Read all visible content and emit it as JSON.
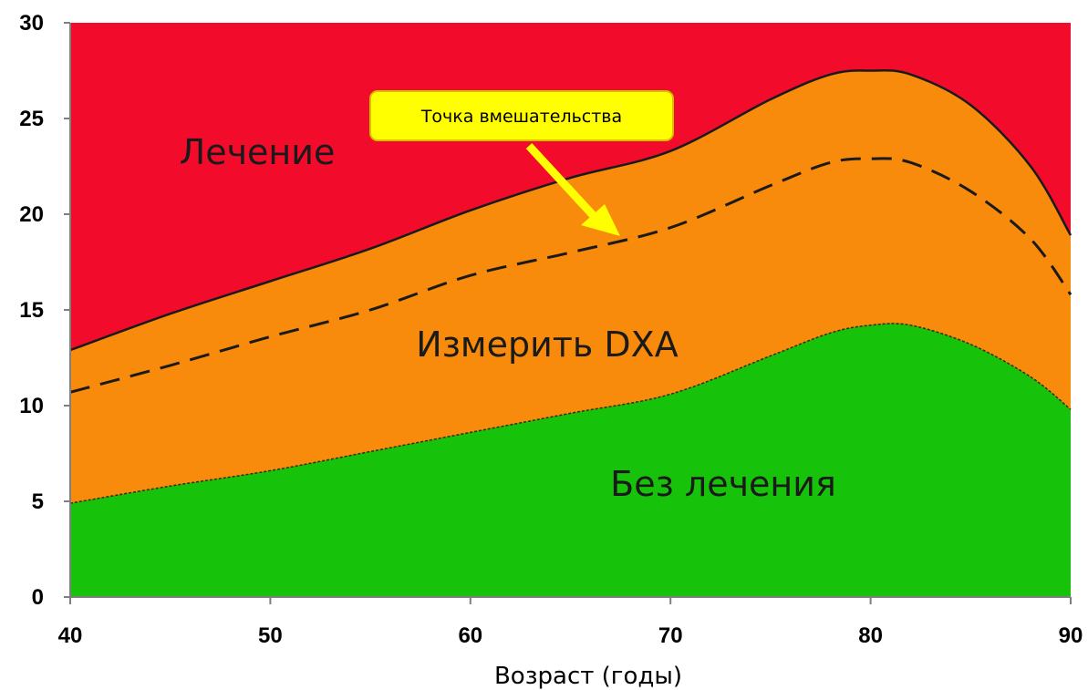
{
  "chart_data": {
    "type": "area",
    "xlabel": "Возраст (годы)",
    "ylabel": "",
    "xlim": [
      40,
      90
    ],
    "ylim": [
      0,
      30
    ],
    "x_ticks": [
      "40",
      "50",
      "60",
      "70",
      "80",
      "90"
    ],
    "y_ticks": [
      "0",
      "5",
      "10",
      "15",
      "20",
      "25",
      "30"
    ],
    "x": [
      40,
      45,
      50,
      55,
      60,
      65,
      70,
      75,
      78,
      80,
      82,
      85,
      88,
      90
    ],
    "series": [
      {
        "name": "Без лечения",
        "color": "#17c20a",
        "values": [
          4.9,
          5.8,
          6.6,
          7.6,
          8.6,
          9.6,
          10.6,
          12.6,
          13.8,
          14.2,
          14.2,
          13.2,
          11.5,
          9.8
        ]
      },
      {
        "name": "Измерить DXA",
        "color": "#f88a0c",
        "values": [
          12.9,
          14.8,
          16.5,
          18.2,
          20.2,
          21.9,
          23.3,
          26.0,
          27.3,
          27.5,
          27.3,
          25.7,
          22.5,
          18.9
        ]
      },
      {
        "name": "Лечение",
        "color": "#f20b2b",
        "values": [
          30,
          30,
          30,
          30,
          30,
          30,
          30,
          30,
          30,
          30,
          30,
          30,
          30,
          30
        ]
      }
    ],
    "intervention_line": {
      "style": "dashed",
      "values": [
        10.7,
        12.1,
        13.6,
        15.0,
        16.8,
        18.0,
        19.3,
        21.5,
        22.7,
        22.9,
        22.7,
        21.2,
        18.7,
        15.8
      ]
    },
    "annotation": {
      "text": "Точка вмешательства",
      "box_color": "#ffff00",
      "arrow_target": [
        68,
        18.7
      ]
    },
    "grid": false,
    "legend": "none"
  }
}
